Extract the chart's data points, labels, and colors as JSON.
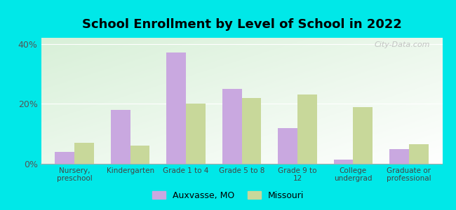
{
  "title": "School Enrollment by Level of School in 2022",
  "categories": [
    "Nursery,\npreschool",
    "Kindergarten",
    "Grade 1 to 4",
    "Grade 5 to 8",
    "Grade 9 to\n12",
    "College\nundergrad",
    "Graduate or\nprofessional"
  ],
  "auxvasse": [
    4.0,
    18.0,
    37.0,
    25.0,
    12.0,
    1.5,
    5.0
  ],
  "missouri": [
    7.0,
    6.0,
    20.0,
    22.0,
    23.0,
    19.0,
    6.5
  ],
  "color_auxvasse": "#c9a8e0",
  "color_missouri": "#c8d89a",
  "background_outer": "#00e8e8",
  "plot_bg_top_left": "#d8f0d8",
  "plot_bg_bottom_right": "#ffffff",
  "ylim": [
    0,
    42
  ],
  "yticks": [
    0,
    20,
    40
  ],
  "ytick_labels": [
    "0%",
    "20%",
    "40%"
  ],
  "bar_width": 0.35,
  "legend_auxvasse": "Auxvasse, MO",
  "legend_missouri": "Missouri",
  "watermark": "City-Data.com"
}
